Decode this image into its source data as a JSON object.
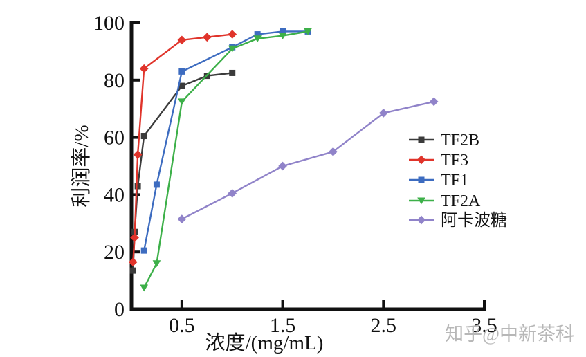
{
  "watermark": {
    "text": "知乎@中新茶科"
  },
  "chart_data": {
    "type": "line",
    "title": "",
    "xlabel": "浓度/(mg/mL)",
    "ylabel": "利润率/%",
    "xlim": [
      0,
      3.5
    ],
    "ylim": [
      0,
      100
    ],
    "xticks": [
      "0.5",
      "1.5",
      "2.5",
      "3.5"
    ],
    "yticks": [
      "0",
      "20",
      "40",
      "60",
      "80",
      "100"
    ],
    "grid": false,
    "legend_position": "right-middle",
    "axis_color": "#111111",
    "series": [
      {
        "name": "TF2B",
        "color": "#3b3b3b",
        "marker": "square",
        "points": [
          [
            0.0156,
            13.5
          ],
          [
            0.0313,
            27
          ],
          [
            0.0625,
            43
          ],
          [
            0.125,
            60.5
          ],
          [
            0.5,
            78
          ],
          [
            0.75,
            81.5
          ],
          [
            1.0,
            82.5
          ]
        ]
      },
      {
        "name": "TF3",
        "color": "#e0342b",
        "marker": "diamond",
        "points": [
          [
            0.0156,
            16.5
          ],
          [
            0.0313,
            25
          ],
          [
            0.0625,
            54
          ],
          [
            0.125,
            84
          ],
          [
            0.5,
            94
          ],
          [
            0.75,
            95
          ],
          [
            1.0,
            96
          ]
        ]
      },
      {
        "name": "TF1",
        "color": "#3d6cc0",
        "marker": "square",
        "points": [
          [
            0.125,
            20.5
          ],
          [
            0.25,
            43.5
          ],
          [
            0.5,
            83
          ],
          [
            1.0,
            91.5
          ],
          [
            1.25,
            96
          ],
          [
            1.5,
            97
          ],
          [
            1.75,
            97
          ]
        ]
      },
      {
        "name": "TF2A",
        "color": "#3db049",
        "marker": "triangle-down",
        "points": [
          [
            0.125,
            7.5
          ],
          [
            0.25,
            16
          ],
          [
            0.5,
            72.5
          ],
          [
            1.0,
            91
          ],
          [
            1.25,
            94.5
          ],
          [
            1.5,
            95.5
          ],
          [
            1.75,
            97
          ]
        ]
      },
      {
        "name": "阿卡波糖",
        "color": "#9083c9",
        "marker": "diamond",
        "points": [
          [
            0.5,
            31.5
          ],
          [
            1.0,
            40.5
          ],
          [
            1.5,
            50
          ],
          [
            2.0,
            55
          ],
          [
            2.5,
            68.5
          ],
          [
            3.0,
            72.5
          ]
        ]
      }
    ]
  }
}
